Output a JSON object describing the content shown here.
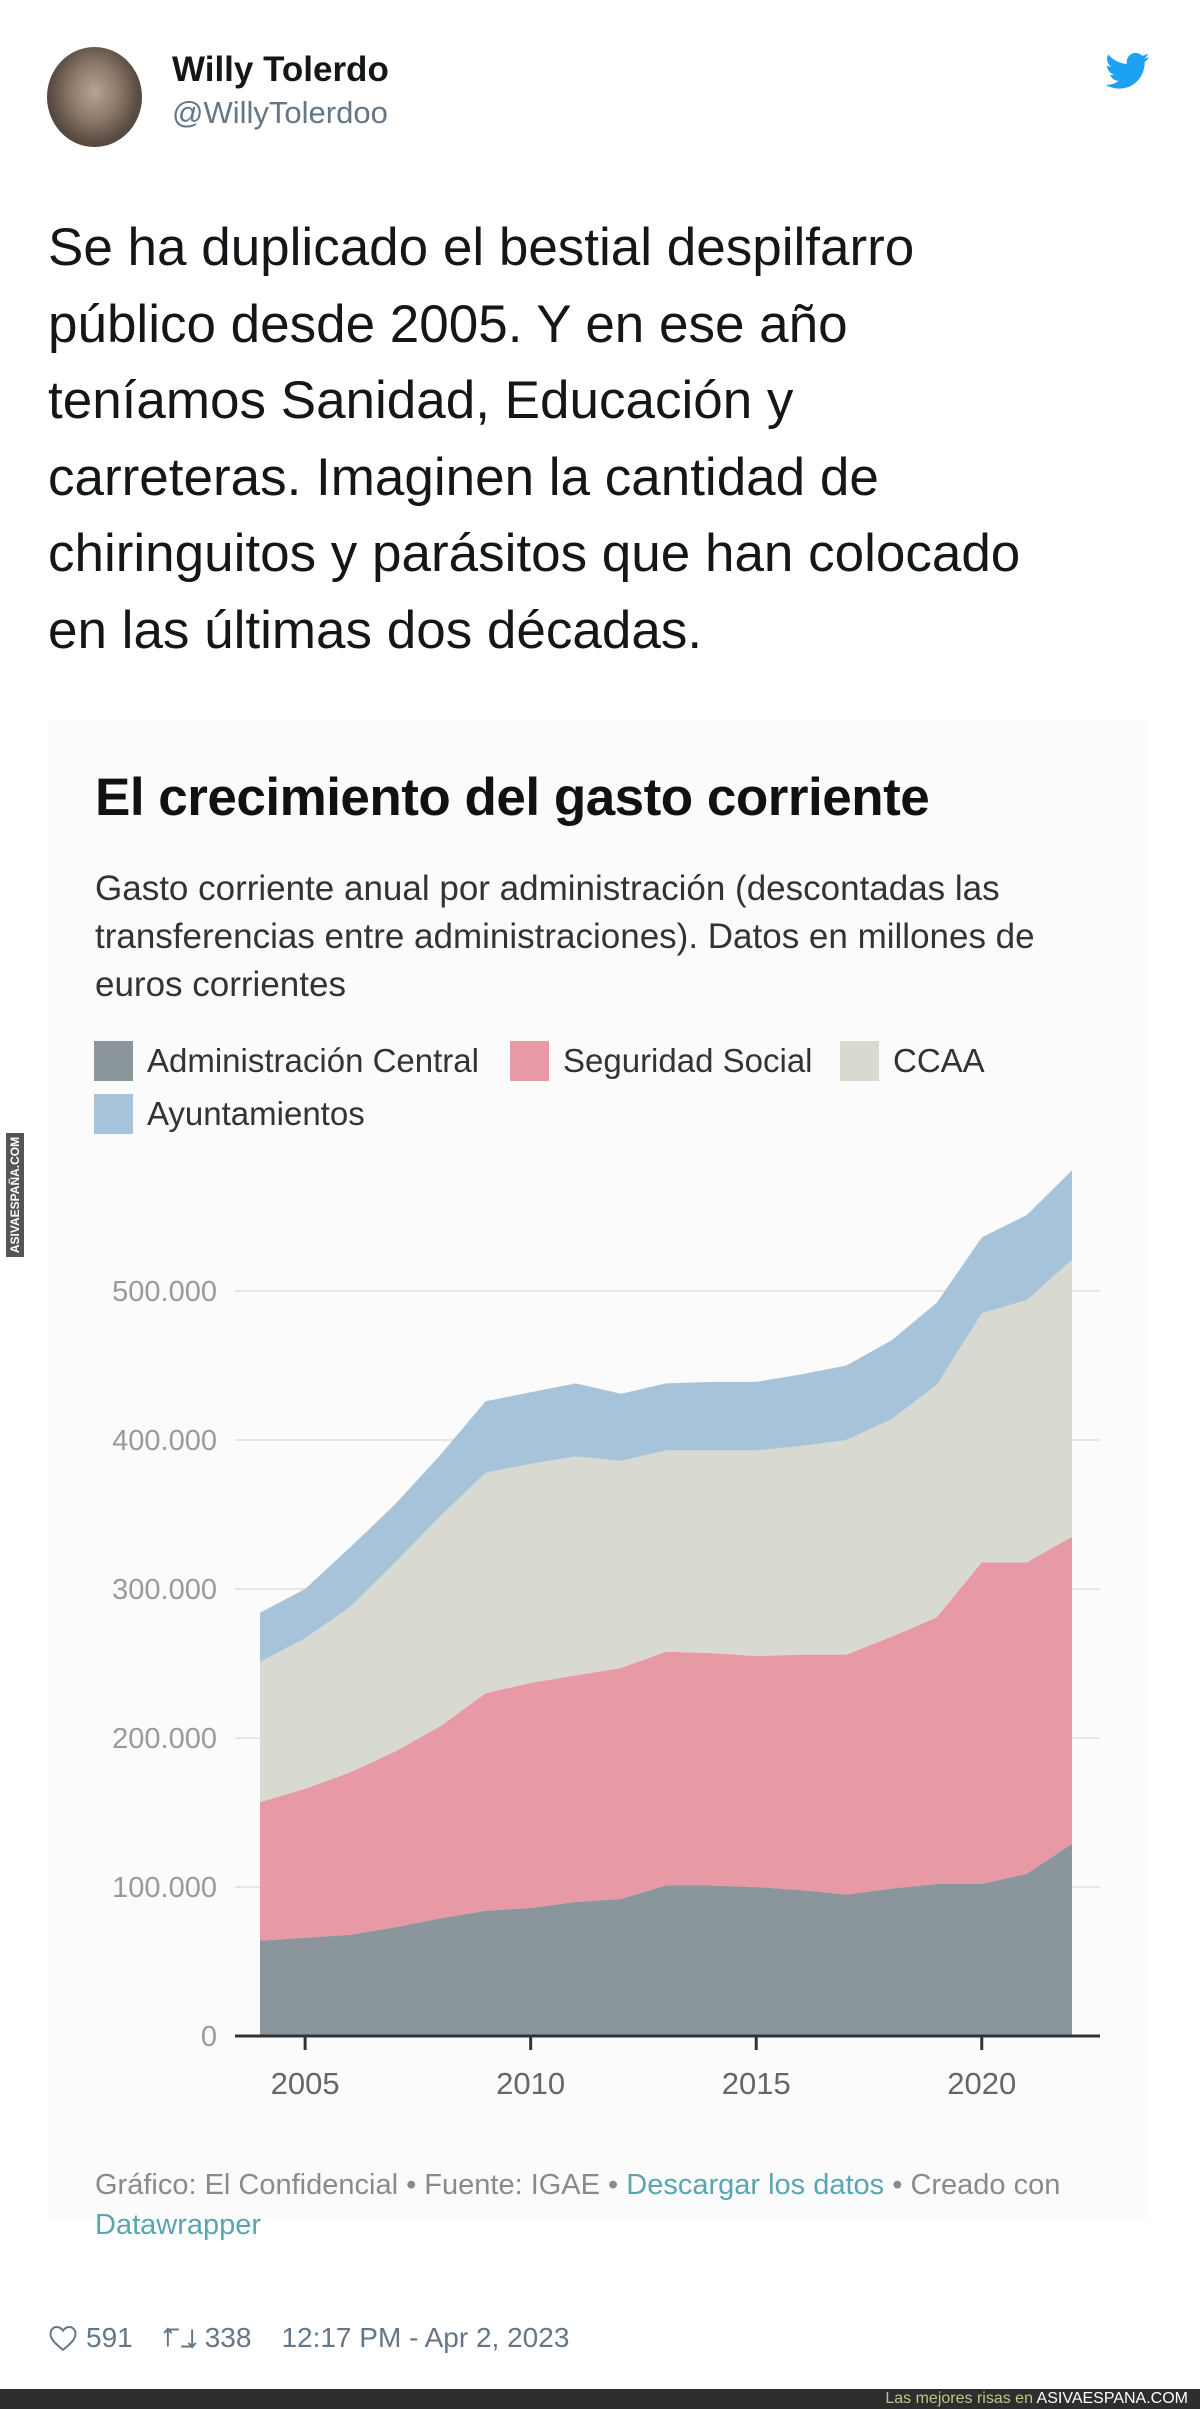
{
  "tweet": {
    "display_name": "Willy Tolerdo",
    "handle": "@WillyTolerdoo",
    "icon": "twitter-bird-icon",
    "brand_color": "#1DA1F2",
    "text_lines": [
      "Se ha duplicado el bestial despilfarro",
      "público desde 2005. Y en ese año",
      "teníamos Sanidad, Educación y",
      "carreteras. Imaginen la cantidad de",
      "chiringuitos y parásitos que han colocado",
      "en las últimas dos décadas."
    ],
    "likes": "591",
    "retweets": "338",
    "timestamp": "12:17 PM - Apr 2, 2023"
  },
  "chart_footer": {
    "prefix": "Gráfico: El Confidencial • Fuente: IGAE • ",
    "download_link": "Descargar los datos",
    "middle": " • Creado con",
    "datawrapper_link": "Datawrapper"
  },
  "watermark": {
    "bar_prefix": "Las mejores risas en ",
    "bar_site": "ASIVAESPANA.COM",
    "side": "ASIVAESPAÑA.COM"
  },
  "chart_data": {
    "type": "area",
    "stacked": true,
    "title": "El crecimiento del gasto corriente",
    "subtitle": "Gasto corriente anual por administración (descontadas las transferencias entre administraciones). Datos en millones de euros corrientes",
    "xlabel": "",
    "ylabel": "",
    "x": [
      2004,
      2005,
      2006,
      2007,
      2008,
      2009,
      2010,
      2011,
      2012,
      2013,
      2014,
      2015,
      2016,
      2017,
      2018,
      2019,
      2020,
      2021,
      2022
    ],
    "xlim": [
      2004,
      2022
    ],
    "ylim": [
      0,
      500000
    ],
    "x_ticks": [
      2005,
      2010,
      2015,
      2020
    ],
    "x_tick_labels": [
      "2005",
      "2010",
      "2015",
      "2020"
    ],
    "y_ticks": [
      0,
      100000,
      200000,
      300000,
      400000,
      500000
    ],
    "y_tick_labels": [
      "0",
      "100.000",
      "200.000",
      "300.000",
      "400.000",
      "500.000"
    ],
    "grid": true,
    "legend_position": "top-left",
    "series": [
      {
        "name": "Administración Central",
        "color": "#8a959c",
        "values": [
          64000,
          66000,
          68000,
          73000,
          79000,
          84000,
          86000,
          90000,
          92000,
          101000,
          101000,
          100000,
          98000,
          95000,
          99000,
          102000,
          102000,
          109000,
          129000
        ]
      },
      {
        "name": "Seguridad Social",
        "color": "#e899a6",
        "values": [
          93000,
          100000,
          109000,
          118000,
          129000,
          146000,
          151000,
          152000,
          155000,
          157000,
          156000,
          155000,
          158000,
          161000,
          169000,
          179000,
          216000,
          209000,
          206000
        ]
      },
      {
        "name": "CCAA",
        "color": "#d8d9d1",
        "values": [
          94000,
          101000,
          111000,
          127000,
          141000,
          148000,
          147000,
          147000,
          139000,
          135000,
          136000,
          138000,
          140000,
          144000,
          146000,
          156000,
          167000,
          176000,
          186000
        ]
      },
      {
        "name": "Ayuntamientos",
        "color": "#a7c3da",
        "values": [
          33000,
          33000,
          40000,
          39000,
          41000,
          48000,
          48000,
          49000,
          45000,
          45000,
          46000,
          46000,
          48000,
          50000,
          53000,
          55000,
          51000,
          57000,
          60000
        ]
      }
    ]
  }
}
